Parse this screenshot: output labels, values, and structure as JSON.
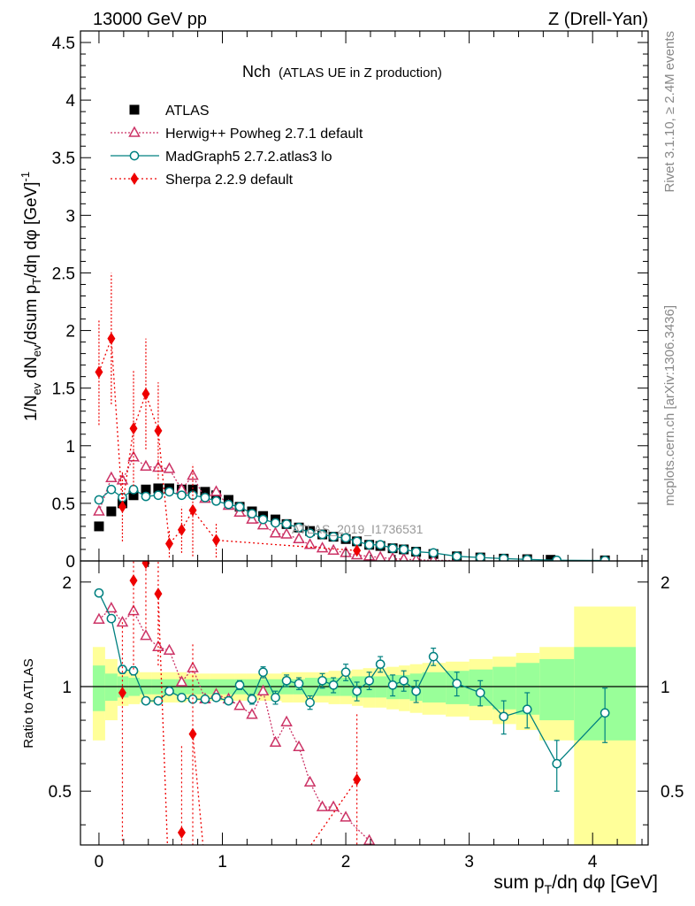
{
  "header": {
    "left": "13000 GeV pp",
    "right": "Z (Drell-Yan)",
    "side_top": "Rivet 3.1.10, ≥ 2.4M events",
    "side_bottom": "mcplots.cern.ch [arXiv:1306.3436]",
    "watermark": "ATLAS_2019_I1736531"
  },
  "chart_data": [
    {
      "type": "scatter",
      "panel": "main",
      "title": "Nch",
      "subtitle": "(ATLAS UE in Z production)",
      "ylabel": "1/N_ev dN_ev/dsum p_T/dη dφ [GeV]^-1",
      "xlim": [
        -0.15,
        4.45
      ],
      "ylim": [
        0,
        4.6
      ],
      "yticks": [
        "0",
        "0.5",
        "1",
        "1.5",
        "2",
        "2.5",
        "3",
        "3.5",
        "4",
        "4.5"
      ],
      "series": [
        {
          "name": "ATLAS",
          "color": "#000000",
          "marker": "square",
          "x": [
            0,
            0.1,
            0.19,
            0.28,
            0.38,
            0.48,
            0.57,
            0.67,
            0.76,
            0.86,
            0.95,
            1.05,
            1.14,
            1.24,
            1.33,
            1.43,
            1.52,
            1.62,
            1.71,
            1.81,
            1.9,
            2.0,
            2.09,
            2.19,
            2.28,
            2.38,
            2.47,
            2.57,
            2.71,
            2.9,
            3.09,
            3.28,
            3.47,
            3.66,
            4.1
          ],
          "y": [
            0.3,
            0.43,
            0.5,
            0.57,
            0.62,
            0.63,
            0.63,
            0.62,
            0.62,
            0.6,
            0.57,
            0.53,
            0.47,
            0.43,
            0.39,
            0.36,
            0.32,
            0.29,
            0.26,
            0.23,
            0.21,
            0.19,
            0.17,
            0.14,
            0.13,
            0.11,
            0.1,
            0.08,
            0.06,
            0.04,
            0.03,
            0.02,
            0.015,
            0.01,
            0.005
          ]
        },
        {
          "name": "Herwig++ Powheg 2.7.1 default",
          "color": "#cc3366",
          "marker": "triangle",
          "x": [
            0,
            0.1,
            0.19,
            0.28,
            0.38,
            0.48,
            0.57,
            0.67,
            0.76,
            0.86,
            0.95,
            1.05,
            1.14,
            1.24,
            1.33,
            1.43,
            1.52,
            1.62,
            1.71,
            1.81,
            1.9,
            2.0,
            2.09,
            2.19,
            2.28,
            2.38,
            2.47,
            2.57,
            2.71,
            2.9
          ],
          "y": [
            0.43,
            0.72,
            0.7,
            0.9,
            0.82,
            0.81,
            0.8,
            0.62,
            0.74,
            0.54,
            0.6,
            0.48,
            0.42,
            0.36,
            0.31,
            0.24,
            0.23,
            0.19,
            0.14,
            0.11,
            0.09,
            0.07,
            0.05,
            0.04,
            0.03,
            0.02,
            0.015,
            0.01,
            0.005,
            0.003
          ]
        },
        {
          "name": "MadGraph5 2.7.2.atlas3 lo",
          "color": "#008080",
          "marker": "circle",
          "x": [
            0,
            0.1,
            0.19,
            0.28,
            0.38,
            0.48,
            0.57,
            0.67,
            0.76,
            0.86,
            0.95,
            1.05,
            1.14,
            1.24,
            1.33,
            1.43,
            1.52,
            1.62,
            1.71,
            1.81,
            1.9,
            2.0,
            2.09,
            2.19,
            2.28,
            2.38,
            2.47,
            2.57,
            2.71,
            2.9,
            3.09,
            3.28,
            3.47,
            3.71,
            4.1
          ],
          "y": [
            0.53,
            0.62,
            0.55,
            0.62,
            0.56,
            0.57,
            0.6,
            0.57,
            0.57,
            0.55,
            0.52,
            0.49,
            0.47,
            0.41,
            0.36,
            0.33,
            0.32,
            0.29,
            0.24,
            0.23,
            0.21,
            0.2,
            0.17,
            0.14,
            0.14,
            0.11,
            0.1,
            0.08,
            0.07,
            0.04,
            0.03,
            0.02,
            0.013,
            0.006,
            0.004
          ]
        },
        {
          "name": "Sherpa 2.2.9 default",
          "color": "#ee0000",
          "marker": "diamond",
          "x": [
            0,
            0.1,
            0.19,
            0.28,
            0.38,
            0.48,
            0.57,
            0.67,
            0.76,
            0.95,
            2.09
          ],
          "y": [
            1.64,
            1.93,
            0.47,
            1.15,
            1.45,
            1.13,
            0.15,
            0.27,
            0.44,
            0.18,
            0.09
          ],
          "yerr": [
            0.46,
            0.57,
            0.3,
            0.5,
            0.48,
            0.42,
            0.12,
            0.2,
            0.4,
            0.15,
            0.05
          ]
        }
      ]
    },
    {
      "type": "scatter",
      "panel": "ratio",
      "ylabel": "Ratio to ATLAS",
      "xlabel": "sum p_T/dη dφ [GeV]",
      "xlim": [
        -0.15,
        4.45
      ],
      "ylim": [
        0.35,
        2.3
      ],
      "xticks": [
        "0",
        "1",
        "2",
        "3",
        "4"
      ],
      "yticks": [
        "0.5",
        "1",
        "2"
      ],
      "band_edges": [
        -0.05,
        0.05,
        0.15,
        0.24,
        0.33,
        0.43,
        0.52,
        0.62,
        0.71,
        0.81,
        0.9,
        1.0,
        1.1,
        1.19,
        1.29,
        1.38,
        1.48,
        1.57,
        1.67,
        1.76,
        1.86,
        1.95,
        2.05,
        2.14,
        2.24,
        2.33,
        2.43,
        2.52,
        2.62,
        2.81,
        3.0,
        3.19,
        3.38,
        3.57,
        3.85,
        4.35
      ],
      "band_stat": [
        0.15,
        0.09,
        0.07,
        0.06,
        0.05,
        0.05,
        0.05,
        0.05,
        0.05,
        0.05,
        0.05,
        0.05,
        0.05,
        0.05,
        0.05,
        0.05,
        0.05,
        0.05,
        0.06,
        0.06,
        0.06,
        0.06,
        0.07,
        0.07,
        0.07,
        0.08,
        0.08,
        0.09,
        0.1,
        0.11,
        0.12,
        0.14,
        0.17,
        0.2,
        0.3
      ],
      "band_total": [
        0.3,
        0.2,
        0.12,
        0.11,
        0.1,
        0.1,
        0.1,
        0.1,
        0.09,
        0.09,
        0.09,
        0.09,
        0.09,
        0.09,
        0.09,
        0.09,
        0.1,
        0.1,
        0.1,
        0.1,
        0.11,
        0.11,
        0.12,
        0.13,
        0.13,
        0.14,
        0.15,
        0.16,
        0.17,
        0.18,
        0.2,
        0.22,
        0.25,
        0.3,
        0.7
      ],
      "series": [
        {
          "name": "Herwig++ Powheg 2.7.1 default",
          "color": "#cc3366",
          "marker": "triangle",
          "x": [
            0,
            0.1,
            0.19,
            0.28,
            0.38,
            0.48,
            0.57,
            0.67,
            0.76,
            0.86,
            0.95,
            1.05,
            1.14,
            1.24,
            1.33,
            1.43,
            1.52,
            1.62,
            1.71,
            1.81,
            1.9,
            2.0,
            2.19
          ],
          "y": [
            1.56,
            1.68,
            1.53,
            1.65,
            1.4,
            1.3,
            1.27,
            1.03,
            1.13,
            0.92,
            0.95,
            0.92,
            0.88,
            0.83,
            0.97,
            0.69,
            0.79,
            0.67,
            0.53,
            0.45,
            0.45,
            0.42,
            0.36
          ]
        },
        {
          "name": "MadGraph5 2.7.2.atlas3 lo",
          "color": "#008080",
          "marker": "circle",
          "x": [
            0,
            0.1,
            0.19,
            0.28,
            0.38,
            0.48,
            0.57,
            0.67,
            0.76,
            0.86,
            0.95,
            1.05,
            1.14,
            1.24,
            1.33,
            1.43,
            1.52,
            1.62,
            1.71,
            1.81,
            1.9,
            2.0,
            2.09,
            2.19,
            2.28,
            2.38,
            2.47,
            2.57,
            2.71,
            2.9,
            3.09,
            3.28,
            3.47,
            3.71,
            4.1
          ],
          "y": [
            1.86,
            1.57,
            1.12,
            1.11,
            0.91,
            0.91,
            0.97,
            0.93,
            0.92,
            0.92,
            0.93,
            0.91,
            1.01,
            0.92,
            1.1,
            0.93,
            1.04,
            1.02,
            0.9,
            1.04,
            1.01,
            1.1,
            0.97,
            1.04,
            1.16,
            1.01,
            1.04,
            0.97,
            1.22,
            1.02,
            0.96,
            0.82,
            0.86,
            0.6,
            0.84
          ],
          "yerr": [
            0.04,
            0.03,
            0.03,
            0.03,
            0.02,
            0.02,
            0.02,
            0.02,
            0.02,
            0.02,
            0.02,
            0.02,
            0.03,
            0.03,
            0.04,
            0.04,
            0.04,
            0.04,
            0.04,
            0.05,
            0.05,
            0.06,
            0.06,
            0.06,
            0.06,
            0.07,
            0.07,
            0.07,
            0.07,
            0.08,
            0.08,
            0.09,
            0.1,
            0.1,
            0.15
          ]
        },
        {
          "name": "Sherpa 2.2.9 default",
          "color": "#ee0000",
          "marker": "diamond",
          "x": [
            0.19,
            0.28,
            0.38,
            0.48,
            0.67,
            0.76,
            2.09
          ],
          "y": [
            0.96,
            2.02,
            2.27,
            1.85,
            0.38,
            0.73,
            0.54
          ],
          "yerr": [
            0.6,
            0.9,
            0.8,
            0.7,
            0.3,
            0.6,
            0.3
          ],
          "offscale_links": [
            {
              "from": [
                0.0,
                3.0
              ],
              "to": [
                0.1,
                3.0
              ]
            },
            {
              "from": [
                0.48,
                1.85
              ],
              "to": [
                0.57,
                0.25
              ]
            },
            {
              "from": [
                0.76,
                0.73
              ],
              "to": [
                0.86,
                0.3
              ]
            },
            {
              "from": [
                1.43,
                0.25
              ],
              "to": [
                2.09,
                0.54
              ]
            }
          ]
        }
      ]
    }
  ]
}
